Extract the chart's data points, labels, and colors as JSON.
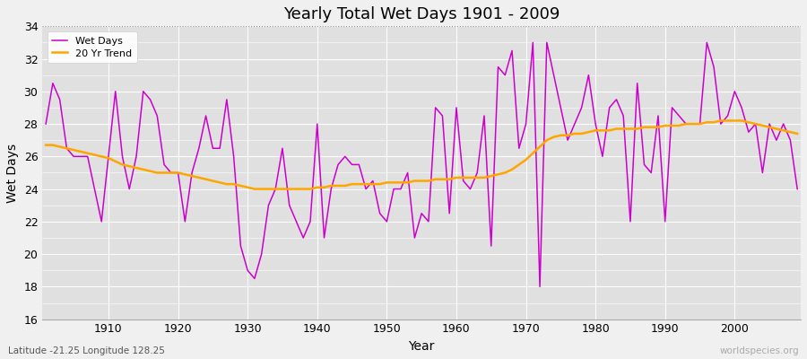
{
  "title": "Yearly Total Wet Days 1901 - 2009",
  "xlabel": "Year",
  "ylabel": "Wet Days",
  "subtitle": "Latitude -21.25 Longitude 128.25",
  "watermark": "worldspecies.org",
  "ylim": [
    16,
    34
  ],
  "yticks": [
    16,
    18,
    20,
    22,
    24,
    26,
    28,
    30,
    32,
    34
  ],
  "line_color": "#cc00cc",
  "trend_color": "#FFA500",
  "fig_bg_color": "#f0f0f0",
  "plot_bg_color": "#e0e0e0",
  "legend_entries": [
    "Wet Days",
    "20 Yr Trend"
  ],
  "years": [
    1901,
    1902,
    1903,
    1904,
    1905,
    1906,
    1907,
    1908,
    1909,
    1910,
    1911,
    1912,
    1913,
    1914,
    1915,
    1916,
    1917,
    1918,
    1919,
    1920,
    1921,
    1922,
    1923,
    1924,
    1925,
    1926,
    1927,
    1928,
    1929,
    1930,
    1931,
    1932,
    1933,
    1934,
    1935,
    1936,
    1937,
    1938,
    1939,
    1940,
    1941,
    1942,
    1943,
    1944,
    1945,
    1946,
    1947,
    1948,
    1949,
    1950,
    1951,
    1952,
    1953,
    1954,
    1955,
    1956,
    1957,
    1958,
    1959,
    1960,
    1961,
    1962,
    1963,
    1964,
    1965,
    1966,
    1967,
    1968,
    1969,
    1970,
    1971,
    1972,
    1973,
    1974,
    1975,
    1976,
    1977,
    1978,
    1979,
    1980,
    1981,
    1982,
    1983,
    1984,
    1985,
    1986,
    1987,
    1988,
    1989,
    1990,
    1991,
    1992,
    1993,
    1994,
    1995,
    1996,
    1997,
    1998,
    1999,
    2000,
    2001,
    2002,
    2003,
    2004,
    2005,
    2006,
    2007,
    2008,
    2009
  ],
  "wet_days": [
    28,
    30.5,
    29.5,
    26.5,
    26,
    26,
    26,
    24,
    22,
    26,
    30,
    26,
    24,
    26,
    30,
    29.5,
    28.5,
    25.5,
    25,
    25,
    22,
    25,
    26.5,
    28.5,
    26.5,
    26.5,
    29.5,
    26,
    20.5,
    19,
    18.5,
    20,
    23,
    24,
    26.5,
    23,
    22,
    21,
    22,
    28,
    21,
    24,
    25.5,
    26,
    25.5,
    25.5,
    24,
    24.5,
    22.5,
    22,
    24,
    24,
    25,
    21,
    22.5,
    22,
    29,
    28.5,
    22.5,
    29,
    24.5,
    24,
    25,
    28.5,
    20.5,
    31.5,
    31,
    32.5,
    26.5,
    28,
    33,
    18,
    33,
    31,
    29,
    27,
    28,
    29,
    31,
    28,
    26,
    29,
    29.5,
    28.5,
    22,
    30.5,
    25.5,
    25,
    28.5,
    22,
    29,
    28.5,
    28,
    28,
    28,
    33,
    31.5,
    28,
    28.5,
    30,
    29,
    27.5,
    28,
    25,
    28,
    27,
    28,
    27,
    24
  ],
  "trend_values": [
    26.7,
    26.7,
    26.6,
    26.5,
    26.4,
    26.3,
    26.2,
    26.1,
    26.0,
    25.9,
    25.7,
    25.5,
    25.4,
    25.3,
    25.2,
    25.1,
    25.0,
    25.0,
    25.0,
    25.0,
    24.9,
    24.8,
    24.7,
    24.6,
    24.5,
    24.4,
    24.3,
    24.3,
    24.2,
    24.1,
    24.0,
    24.0,
    24.0,
    24.0,
    24.0,
    24.0,
    24.0,
    24.0,
    24.0,
    24.1,
    24.1,
    24.2,
    24.2,
    24.2,
    24.3,
    24.3,
    24.3,
    24.3,
    24.3,
    24.4,
    24.4,
    24.4,
    24.4,
    24.5,
    24.5,
    24.5,
    24.6,
    24.6,
    24.6,
    24.7,
    24.7,
    24.7,
    24.7,
    24.7,
    24.8,
    24.9,
    25.0,
    25.2,
    25.5,
    25.8,
    26.2,
    26.6,
    27.0,
    27.2,
    27.3,
    27.3,
    27.4,
    27.4,
    27.5,
    27.6,
    27.6,
    27.6,
    27.7,
    27.7,
    27.7,
    27.7,
    27.8,
    27.8,
    27.8,
    27.9,
    27.9,
    27.9,
    28.0,
    28.0,
    28.0,
    28.1,
    28.1,
    28.2,
    28.2,
    28.2,
    28.2,
    28.1,
    28.0,
    27.9,
    27.8,
    27.7,
    27.6,
    27.5,
    27.4
  ]
}
